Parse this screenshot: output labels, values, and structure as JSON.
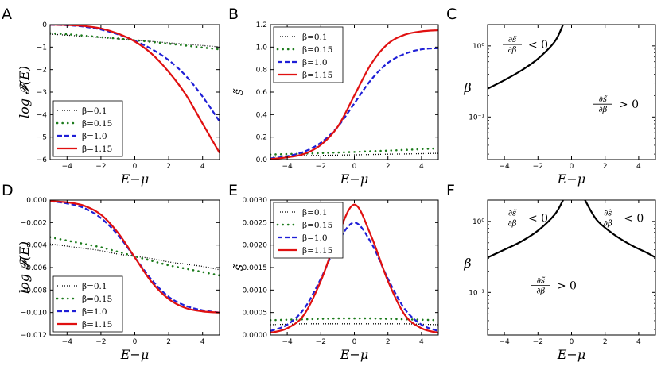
{
  "chart_data": [
    {
      "id": "A",
      "type": "line",
      "panel_label": "A",
      "xlabel": "E−μ",
      "ylabel": "log 𝓕(E)",
      "xlim": [
        -5,
        5
      ],
      "ylim": [
        -6,
        0
      ],
      "xticks": [
        -4,
        -2,
        0,
        2,
        4
      ],
      "xtick_labels": [
        "−4",
        "−2",
        "0",
        "2",
        "4"
      ],
      "yticks": [
        -6,
        -5,
        -4,
        -3,
        -2,
        -1,
        0
      ],
      "ytick_labels": [
        "−6",
        "−5",
        "−4",
        "−3",
        "−2",
        "−1",
        "0"
      ],
      "legend_position": "lower-left",
      "x": [
        -5,
        -4,
        -3,
        -2,
        -1,
        0,
        1,
        2,
        3,
        4,
        5
      ],
      "series": [
        {
          "name": "β=0.1",
          "style": "dotted-black",
          "values": [
            -0.42,
            -0.47,
            -0.52,
            -0.57,
            -0.63,
            -0.69,
            -0.75,
            -0.81,
            -0.87,
            -0.93,
            -0.99
          ]
        },
        {
          "name": "β=0.15",
          "style": "dots-green",
          "values": [
            -0.38,
            -0.43,
            -0.49,
            -0.56,
            -0.62,
            -0.69,
            -0.77,
            -0.85,
            -0.93,
            -1.02,
            -1.1
          ]
        },
        {
          "name": "β=1.0",
          "style": "dashed-blue",
          "values": [
            -0.01,
            -0.03,
            -0.09,
            -0.22,
            -0.43,
            -0.72,
            -1.09,
            -1.58,
            -2.27,
            -3.2,
            -4.3
          ]
        },
        {
          "name": "β=1.15",
          "style": "solid-red",
          "values": [
            -0.005,
            -0.02,
            -0.06,
            -0.17,
            -0.4,
            -0.75,
            -1.3,
            -2.1,
            -3.1,
            -4.4,
            -5.7
          ]
        }
      ]
    },
    {
      "id": "B",
      "type": "line",
      "panel_label": "B",
      "xlabel": "E−μ",
      "ylabel": "s̃",
      "xlim": [
        -5,
        5
      ],
      "ylim": [
        0,
        1.2
      ],
      "xticks": [
        -4,
        -2,
        0,
        2,
        4
      ],
      "xtick_labels": [
        "−4",
        "−2",
        "0",
        "2",
        "4"
      ],
      "yticks": [
        0,
        0.2,
        0.4,
        0.6,
        0.8,
        1.0,
        1.2
      ],
      "ytick_labels": [
        "0.0",
        "0.2",
        "0.4",
        "0.6",
        "0.8",
        "1.0",
        "1.2"
      ],
      "legend_position": "upper-left",
      "x": [
        -5,
        -4,
        -3,
        -2,
        -1,
        0,
        1,
        2,
        3,
        4,
        5
      ],
      "series": [
        {
          "name": "β=0.1",
          "style": "dotted-black",
          "values": [
            0.03,
            0.032,
            0.035,
            0.037,
            0.04,
            0.042,
            0.045,
            0.048,
            0.05,
            0.053,
            0.056
          ]
        },
        {
          "name": "β=0.15",
          "style": "dots-green",
          "values": [
            0.045,
            0.049,
            0.053,
            0.058,
            0.063,
            0.068,
            0.074,
            0.08,
            0.086,
            0.093,
            0.1
          ]
        },
        {
          "name": "β=1.0",
          "style": "dashed-blue",
          "values": [
            0.01,
            0.03,
            0.07,
            0.15,
            0.29,
            0.5,
            0.71,
            0.86,
            0.94,
            0.98,
            0.99
          ]
        },
        {
          "name": "β=1.15",
          "style": "solid-red",
          "values": [
            0.005,
            0.02,
            0.05,
            0.13,
            0.29,
            0.57,
            0.85,
            1.03,
            1.11,
            1.14,
            1.15
          ]
        }
      ]
    },
    {
      "id": "C",
      "type": "line",
      "panel_label": "C",
      "xlabel": "E−μ",
      "ylabel": "β",
      "xlim": [
        -5,
        5
      ],
      "ylim_log10": [
        -1.6,
        0.3
      ],
      "yscale": "log",
      "xticks": [
        -4,
        -2,
        0,
        2,
        4
      ],
      "xtick_labels": [
        "−4",
        "−2",
        "0",
        "2",
        "4"
      ],
      "yticks_log10": [
        0,
        -1
      ],
      "ytick_labels": [
        "10⁰",
        "10⁻¹"
      ],
      "x": [
        -5,
        -4,
        -3,
        -2,
        -1,
        -0.5
      ],
      "series": [
        {
          "name": "boundary",
          "style": "solid-black",
          "values": [
            0.25,
            0.33,
            0.45,
            0.66,
            1.15,
            2.0
          ]
        }
      ],
      "annotations": [
        {
          "frac_num": "∂s̃",
          "frac_den": "∂β",
          "relation": "< 0",
          "data_x": -4.1,
          "data_log_y": 0.02
        },
        {
          "frac_num": "∂s̃",
          "frac_den": "∂β",
          "relation": "> 0",
          "data_x": 1.3,
          "data_log_y": -0.82
        }
      ]
    },
    {
      "id": "D",
      "type": "line",
      "panel_label": "D",
      "xlabel": "E−μ",
      "ylabel": "log 𝓕(E)",
      "xlim": [
        -5,
        5
      ],
      "ylim": [
        -0.012,
        0
      ],
      "xticks": [
        -4,
        -2,
        0,
        2,
        4
      ],
      "xtick_labels": [
        "−4",
        "−2",
        "0",
        "2",
        "4"
      ],
      "yticks": [
        -0.012,
        -0.01,
        -0.008,
        -0.006,
        -0.004,
        -0.002,
        0
      ],
      "ytick_labels": [
        "−0.012",
        "−0.010",
        "−0.008",
        "−0.006",
        "−0.004",
        "−0.002",
        "0.000"
      ],
      "legend_position": "lower-left",
      "x": [
        -5,
        -4,
        -3,
        -2,
        -1,
        0,
        1,
        2,
        3,
        4,
        5
      ],
      "series": [
        {
          "name": "β=0.1",
          "style": "dotted-black",
          "values": [
            -0.0039,
            -0.0041,
            -0.0043,
            -0.0045,
            -0.0048,
            -0.005,
            -0.0052,
            -0.0055,
            -0.0057,
            -0.0059,
            -0.0062
          ]
        },
        {
          "name": "β=0.15",
          "style": "dots-green",
          "values": [
            -0.0033,
            -0.0036,
            -0.0039,
            -0.0042,
            -0.0046,
            -0.005,
            -0.0054,
            -0.0058,
            -0.0061,
            -0.0064,
            -0.0067
          ]
        },
        {
          "name": "β=1.0",
          "style": "dashed-blue",
          "values": [
            -0.0001,
            -0.0003,
            -0.0007,
            -0.0016,
            -0.0031,
            -0.0051,
            -0.0071,
            -0.0086,
            -0.0094,
            -0.0098,
            -0.01
          ]
        },
        {
          "name": "β=1.15",
          "style": "solid-red",
          "values": [
            -0.0001,
            -0.0002,
            -0.0005,
            -0.0013,
            -0.0029,
            -0.0051,
            -0.0073,
            -0.0088,
            -0.0096,
            -0.0099,
            -0.01
          ]
        }
      ]
    },
    {
      "id": "E",
      "type": "line",
      "panel_label": "E",
      "xlabel": "E−μ",
      "ylabel": "s̃",
      "xlim": [
        -5,
        5
      ],
      "ylim": [
        0,
        0.003
      ],
      "xticks": [
        -4,
        -2,
        0,
        2,
        4
      ],
      "xtick_labels": [
        "−4",
        "−2",
        "0",
        "2",
        "4"
      ],
      "yticks": [
        0,
        0.0005,
        0.001,
        0.0015,
        0.002,
        0.0025,
        0.003
      ],
      "ytick_labels": [
        "0.0000",
        "0.0005",
        "0.0010",
        "0.0015",
        "0.0020",
        "0.0025",
        "0.0030"
      ],
      "legend_position": "upper-left",
      "x": [
        -5,
        -4,
        -3,
        -2,
        -1,
        0,
        1,
        2,
        3,
        4,
        5
      ],
      "series": [
        {
          "name": "β=0.1",
          "style": "dotted-black",
          "values": [
            0.00023,
            0.00024,
            0.00025,
            0.00025,
            0.00025,
            0.00025,
            0.00025,
            0.00025,
            0.00025,
            0.00024,
            0.00023
          ]
        },
        {
          "name": "β=0.15",
          "style": "dots-green",
          "values": [
            0.00033,
            0.00034,
            0.00035,
            0.00036,
            0.00037,
            0.00037,
            0.00037,
            0.00036,
            0.00035,
            0.00034,
            0.00033
          ]
        },
        {
          "name": "β=1.0",
          "style": "dashed-blue",
          "values": [
            9e-05,
            0.00023,
            0.00058,
            0.00125,
            0.00205,
            0.0025,
            0.00205,
            0.00125,
            0.00058,
            0.00023,
            9e-05
          ]
        },
        {
          "name": "β=1.15",
          "style": "solid-red",
          "values": [
            5e-05,
            0.00015,
            0.00045,
            0.0012,
            0.0022,
            0.0029,
            0.0022,
            0.0012,
            0.00045,
            0.00015,
            5e-05
          ]
        }
      ]
    },
    {
      "id": "F",
      "type": "line",
      "panel_label": "F",
      "xlabel": "E−μ",
      "ylabel": "β",
      "xlim": [
        -5,
        5
      ],
      "ylim_log10": [
        -1.6,
        0.3
      ],
      "yscale": "log",
      "xticks": [
        -4,
        -2,
        0,
        2,
        4
      ],
      "xtick_labels": [
        "−4",
        "−2",
        "0",
        "2",
        "4"
      ],
      "yticks_log10": [
        0,
        -1
      ],
      "ytick_labels": [
        "10⁰",
        "10⁻¹"
      ],
      "x": [
        -5,
        -4,
        -3,
        -2,
        -1,
        -0.5
      ],
      "series": [
        {
          "name": "boundary-left",
          "style": "solid-black",
          "values": [
            0.31,
            0.4,
            0.52,
            0.74,
            1.25,
            2.0
          ]
        },
        {
          "name": "boundary-right",
          "style": "solid-black",
          "x": [
            0.8,
            1.5,
            2.5,
            3.5,
            4.5,
            5.0
          ],
          "values": [
            2.0,
            1.05,
            0.66,
            0.47,
            0.36,
            0.31
          ]
        }
      ],
      "annotations": [
        {
          "frac_num": "∂s̃",
          "frac_den": "∂β",
          "relation": "< 0",
          "data_x": -4.1,
          "data_log_y": 0.05
        },
        {
          "frac_num": "∂s̃",
          "frac_den": "∂β",
          "relation": "< 0",
          "data_x": 1.6,
          "data_log_y": 0.05
        },
        {
          "frac_num": "∂s̃",
          "frac_den": "∂β",
          "relation": "> 0",
          "data_x": -2.4,
          "data_log_y": -0.9
        }
      ]
    }
  ]
}
